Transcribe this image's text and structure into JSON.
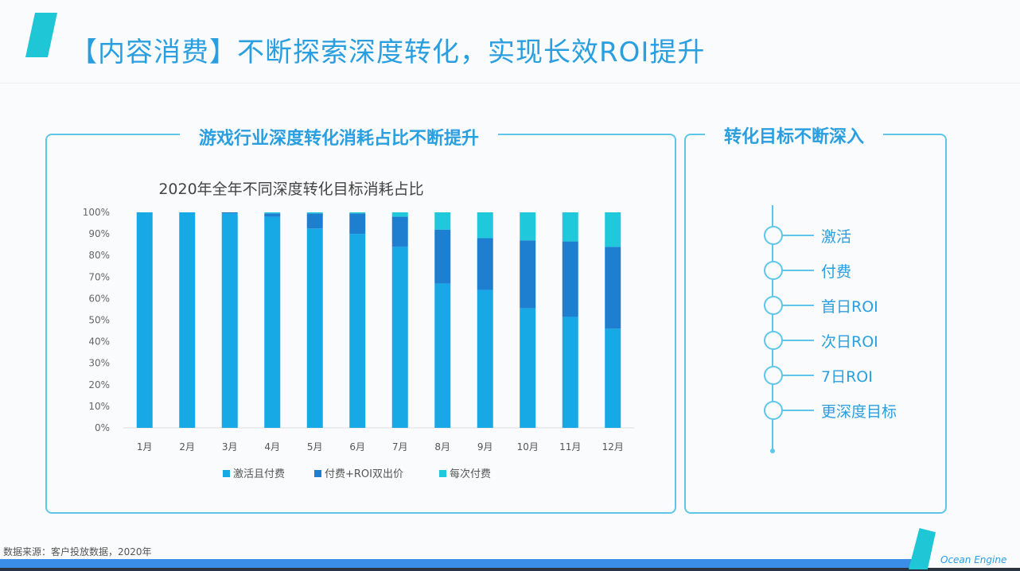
{
  "header": {
    "title": "【内容消费】不断探索深度转化，实现长效ROI提升"
  },
  "left_panel": {
    "title": "游戏行业深度转化消耗占比不断提升"
  },
  "right_panel": {
    "title": "转化目标不断深入",
    "timeline": [
      "激活",
      "付费",
      "首日ROI",
      "次日ROI",
      "7日ROI",
      "更深度目标"
    ]
  },
  "footer": {
    "source": "数据来源：客户投放数据，2020年",
    "brand": "Ocean Engine"
  },
  "colors": {
    "s1": "#17a8e6",
    "s2": "#1e7fd0",
    "s3": "#20c8dc",
    "accent": "#2a9fe0"
  },
  "chart_data": {
    "type": "bar",
    "stacked": true,
    "title": "2020年全年不同深度转化目标消耗占比",
    "categories": [
      "1月",
      "2月",
      "3月",
      "4月",
      "5月",
      "6月",
      "7月",
      "8月",
      "9月",
      "10月",
      "11月",
      "12月"
    ],
    "series": [
      {
        "name": "激活且付费",
        "values": [
          100,
          100,
          99.5,
          98,
          92.5,
          90,
          84,
          67,
          64,
          55.5,
          51.5,
          46
        ]
      },
      {
        "name": "付费+ROI双出价",
        "values": [
          0,
          0,
          0.5,
          1.5,
          7,
          9.5,
          14,
          25,
          24,
          31.5,
          35,
          38
        ]
      },
      {
        "name": "每次付费",
        "values": [
          0,
          0,
          0,
          0.5,
          0.5,
          0.5,
          2,
          8,
          12,
          13,
          13.5,
          16
        ]
      }
    ],
    "yticks": [
      "0%",
      "10%",
      "20%",
      "30%",
      "40%",
      "50%",
      "60%",
      "70%",
      "80%",
      "90%",
      "100%"
    ],
    "ylim": [
      0,
      100
    ],
    "legend": "bottom",
    "grid": false
  }
}
